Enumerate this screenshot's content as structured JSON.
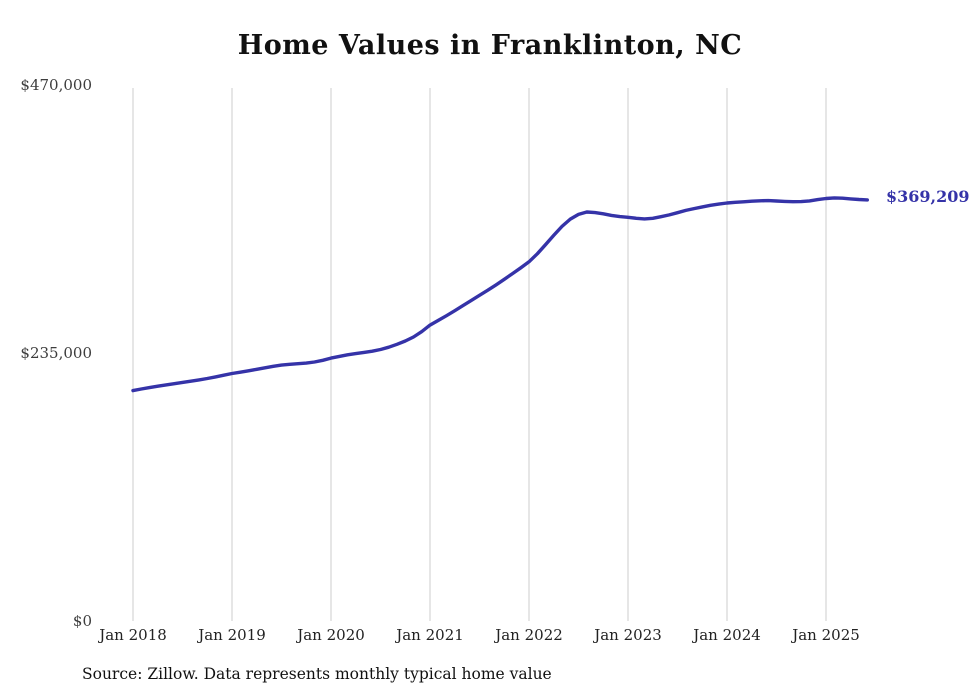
{
  "page": {
    "background": "#ffffff"
  },
  "chart_data": {
    "type": "line",
    "title": "Home Values in Franklinton, NC",
    "x_tick_labels": [
      "Jan 2018",
      "Jan 2019",
      "Jan 2020",
      "Jan 2021",
      "Jan 2022",
      "Jan 2023",
      "Jan 2024",
      "Jan 2025"
    ],
    "y_ticks": [
      {
        "label": "$470,000",
        "value": 470000
      },
      {
        "label": "$235,000",
        "value": 235000
      },
      {
        "label": "$0",
        "value": 0
      }
    ],
    "ylim": [
      0,
      470000
    ],
    "x_start": "2018-01",
    "x_end": "2025-06",
    "x_interval": "monthly",
    "grid": "vertical-only",
    "legend": "none",
    "line_color": "#3533a8",
    "gridline_color": "#cccccc",
    "end_label": "$369,209",
    "latest_value": 369209,
    "series": [
      {
        "name": "Typical home value",
        "values": [
          202000,
          203400,
          204700,
          205900,
          207000,
          208100,
          209200,
          210300,
          211400,
          212600,
          214000,
          215500,
          217000,
          218200,
          219400,
          220700,
          222000,
          223300,
          224400,
          225100,
          225600,
          226100,
          227100,
          228600,
          230500,
          232000,
          233400,
          234500,
          235500,
          236600,
          238100,
          240100,
          242600,
          245500,
          249000,
          253800,
          259500,
          263600,
          267700,
          272100,
          276600,
          281100,
          285600,
          290100,
          294700,
          299600,
          304600,
          309700,
          315000,
          322000,
          330000,
          338200,
          346000,
          352400,
          356500,
          358600,
          358100,
          357100,
          355700,
          354600,
          354000,
          353100,
          352600,
          353100,
          354500,
          356100,
          358000,
          360000,
          361600,
          363100,
          364500,
          365600,
          366500,
          367100,
          367600,
          368100,
          368500,
          368600,
          368300,
          367900,
          367700,
          367800,
          368400,
          369500,
          370500,
          371000,
          370700,
          370100,
          369600,
          369209
        ]
      }
    ]
  },
  "footer": {
    "source": "Source: Zillow. Data represents monthly typical home value"
  }
}
